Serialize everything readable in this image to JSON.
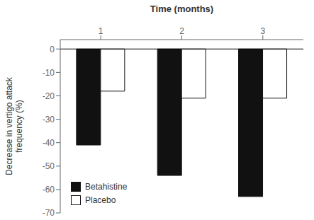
{
  "chart_data": {
    "type": "bar",
    "xlabel": "Time (months)",
    "ylabel": "Decrease in vertigo attack\nfrequency (%)",
    "categories": [
      "1",
      "2",
      "3"
    ],
    "series": [
      {
        "name": "Betahistine",
        "color": "#111111",
        "values": [
          -41,
          -54,
          -63
        ]
      },
      {
        "name": "Placebo",
        "color": "#ffffff",
        "values": [
          -18,
          -21,
          -21
        ]
      }
    ],
    "ylim": [
      -70,
      4
    ],
    "yticks": [
      0,
      -10,
      -20,
      -30,
      -40,
      -50,
      -60,
      -70
    ],
    "grid": false,
    "legend": "lower left"
  }
}
